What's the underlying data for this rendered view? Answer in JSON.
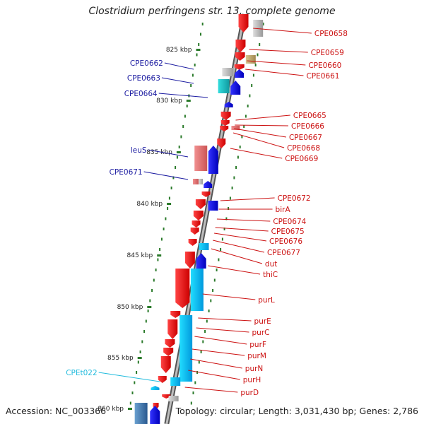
{
  "title": "Clostridium perfringens str. 13, complete genome",
  "footer": {
    "accession": "Accession: NC_003366",
    "summary": "Topology: circular; Length: 3,031,430 bp; Genes: 2,786"
  },
  "colors": {
    "cds_forward": "#1010e0",
    "cds_reverse": "#ee1111",
    "rrna": "#1ab0e0",
    "trna": "#00bbee",
    "label_forward": "#1a1aa0",
    "label_reverse": "#cc1111",
    "tick": "#2a7a2a",
    "backbone": "#888888"
  },
  "scale": {
    "ticks": [
      {
        "label": "825 kbp",
        "kbp": 825
      },
      {
        "label": "830 kbp",
        "kbp": 830
      },
      {
        "label": "835 kbp",
        "kbp": 835
      },
      {
        "label": "840 kbp",
        "kbp": 840
      },
      {
        "label": "845 kbp",
        "kbp": 845
      },
      {
        "label": "850 kbp",
        "kbp": 850
      },
      {
        "label": "855 kbp",
        "kbp": 855
      },
      {
        "label": "860 kbp",
        "kbp": 860
      }
    ]
  },
  "genes_left": [
    {
      "name": "CPE0662",
      "color": "#1a1aa0"
    },
    {
      "name": "CPE0663",
      "color": "#1a1aa0"
    },
    {
      "name": "CPE0664",
      "color": "#1a1aa0"
    },
    {
      "name": "leuS",
      "color": "#1a1aa0"
    },
    {
      "name": "CPE0671",
      "color": "#1a1aa0"
    },
    {
      "name": "CPEt022",
      "color": "#22bbdd"
    }
  ],
  "genes_right": [
    {
      "name": "CPE0658"
    },
    {
      "name": "CPE0659"
    },
    {
      "name": "CPE0660"
    },
    {
      "name": "CPE0661"
    },
    {
      "name": "CPE0665"
    },
    {
      "name": "CPE0666"
    },
    {
      "name": "CPE0667"
    },
    {
      "name": "CPE0668"
    },
    {
      "name": "CPE0669"
    },
    {
      "name": "CPE0672"
    },
    {
      "name": "birA"
    },
    {
      "name": "CPE0674"
    },
    {
      "name": "CPE0675"
    },
    {
      "name": "CPE0676"
    },
    {
      "name": "CPE0677"
    },
    {
      "name": "dut"
    },
    {
      "name": "thiC"
    },
    {
      "name": "purL"
    },
    {
      "name": "purE"
    },
    {
      "name": "purC"
    },
    {
      "name": "purF"
    },
    {
      "name": "purM"
    },
    {
      "name": "purN"
    },
    {
      "name": "purH"
    },
    {
      "name": "purD"
    }
  ]
}
